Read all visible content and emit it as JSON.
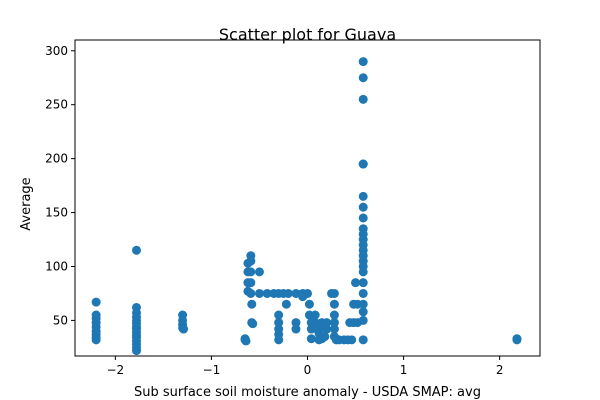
{
  "chart_data": {
    "type": "scatter",
    "title": "Scatter plot for Guava",
    "xlabel": "Sub surface soil moisture anomaly - USDA SMAP: avg",
    "ylabel": "Average",
    "xlim": [
      -2.42,
      2.42
    ],
    "ylim": [
      17,
      310
    ],
    "xticks": [
      -2,
      -1,
      0,
      1,
      2
    ],
    "xtick_labels": [
      "−2",
      "−1",
      "0",
      "1",
      "2"
    ],
    "yticks": [
      50,
      100,
      150,
      200,
      250,
      300
    ],
    "ytick_labels": [
      "50",
      "100",
      "150",
      "200",
      "250",
      "300"
    ],
    "grid": false,
    "color": "#1f77b4",
    "points": [
      [
        -2.2,
        67
      ],
      [
        -2.2,
        55
      ],
      [
        -2.2,
        52
      ],
      [
        -2.2,
        48
      ],
      [
        -2.2,
        44
      ],
      [
        -2.2,
        40
      ],
      [
        -2.2,
        37
      ],
      [
        -2.2,
        34
      ],
      [
        -2.2,
        32
      ],
      [
        -1.78,
        115
      ],
      [
        -1.78,
        62
      ],
      [
        -1.78,
        57
      ],
      [
        -1.78,
        53
      ],
      [
        -1.78,
        50
      ],
      [
        -1.78,
        47
      ],
      [
        -1.78,
        44
      ],
      [
        -1.78,
        42
      ],
      [
        -1.78,
        39
      ],
      [
        -1.78,
        36
      ],
      [
        -1.78,
        34
      ],
      [
        -1.78,
        31
      ],
      [
        -1.78,
        28
      ],
      [
        -1.78,
        25
      ],
      [
        -1.78,
        22
      ],
      [
        -1.3,
        55
      ],
      [
        -1.3,
        50
      ],
      [
        -1.3,
        46
      ],
      [
        -1.3,
        43
      ],
      [
        -1.29,
        42
      ],
      [
        -0.65,
        33
      ],
      [
        -0.65,
        32
      ],
      [
        -0.64,
        31
      ],
      [
        -0.62,
        103
      ],
      [
        -0.62,
        95
      ],
      [
        -0.62,
        85
      ],
      [
        -0.62,
        77
      ],
      [
        -0.59,
        110
      ],
      [
        -0.59,
        105
      ],
      [
        -0.59,
        95
      ],
      [
        -0.59,
        85
      ],
      [
        -0.59,
        75
      ],
      [
        -0.58,
        65
      ],
      [
        -0.58,
        48
      ],
      [
        -0.57,
        47
      ],
      [
        -0.5,
        95
      ],
      [
        -0.5,
        75
      ],
      [
        -0.42,
        75
      ],
      [
        -0.35,
        75
      ],
      [
        -0.3,
        75
      ],
      [
        -0.3,
        55
      ],
      [
        -0.3,
        48
      ],
      [
        -0.3,
        42
      ],
      [
        -0.3,
        37
      ],
      [
        -0.3,
        32
      ],
      [
        -0.25,
        75
      ],
      [
        -0.2,
        75
      ],
      [
        -0.22,
        65
      ],
      [
        -0.12,
        75
      ],
      [
        -0.12,
        48
      ],
      [
        -0.12,
        42
      ],
      [
        -0.05,
        75
      ],
      [
        -0.05,
        72
      ],
      [
        0.0,
        75
      ],
      [
        0.02,
        65
      ],
      [
        0.02,
        55
      ],
      [
        0.04,
        48
      ],
      [
        0.04,
        42
      ],
      [
        0.04,
        33
      ],
      [
        0.08,
        55
      ],
      [
        0.08,
        48
      ],
      [
        0.1,
        45
      ],
      [
        0.1,
        42
      ],
      [
        0.12,
        38
      ],
      [
        0.12,
        32
      ],
      [
        0.15,
        48
      ],
      [
        0.15,
        45
      ],
      [
        0.15,
        33
      ],
      [
        0.18,
        45
      ],
      [
        0.18,
        35
      ],
      [
        0.2,
        48
      ],
      [
        0.2,
        42
      ],
      [
        0.25,
        75
      ],
      [
        0.28,
        75
      ],
      [
        0.28,
        65
      ],
      [
        0.28,
        55
      ],
      [
        0.28,
        48
      ],
      [
        0.28,
        42
      ],
      [
        0.28,
        35
      ],
      [
        0.3,
        32
      ],
      [
        0.33,
        32
      ],
      [
        0.38,
        32
      ],
      [
        0.42,
        32
      ],
      [
        0.46,
        32
      ],
      [
        0.44,
        48
      ],
      [
        0.48,
        48
      ],
      [
        0.48,
        65
      ],
      [
        0.5,
        85
      ],
      [
        0.52,
        65
      ],
      [
        0.52,
        48
      ],
      [
        0.58,
        290
      ],
      [
        0.58,
        275
      ],
      [
        0.58,
        255
      ],
      [
        0.58,
        195
      ],
      [
        0.58,
        195
      ],
      [
        0.58,
        165
      ],
      [
        0.58,
        155
      ],
      [
        0.58,
        145
      ],
      [
        0.58,
        135
      ],
      [
        0.58,
        130
      ],
      [
        0.58,
        125
      ],
      [
        0.58,
        120
      ],
      [
        0.58,
        115
      ],
      [
        0.58,
        110
      ],
      [
        0.58,
        105
      ],
      [
        0.58,
        100
      ],
      [
        0.58,
        95
      ],
      [
        0.58,
        85
      ],
      [
        0.58,
        75
      ],
      [
        0.58,
        65
      ],
      [
        0.58,
        58
      ],
      [
        0.58,
        50
      ],
      [
        0.58,
        32
      ],
      [
        2.18,
        33
      ],
      [
        2.18,
        32
      ]
    ]
  }
}
